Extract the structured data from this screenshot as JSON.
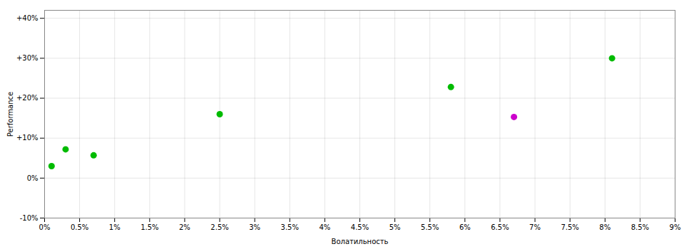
{
  "chart_data": {
    "type": "scatter",
    "x_label": "Волатильность",
    "y_label": "Performance",
    "x": [
      0.001,
      0.003,
      0.007,
      0.025,
      0.058,
      0.067,
      0.081
    ],
    "values": [
      0.03,
      0.072,
      0.057,
      0.16,
      0.228,
      0.153,
      0.3
    ],
    "colors": [
      "#00bb00",
      "#00bb00",
      "#00bb00",
      "#00bb00",
      "#00bb00",
      "#cc00cc",
      "#00bb00"
    ],
    "xlim": [
      0.0,
      0.09
    ],
    "ylim": [
      -0.1,
      0.42
    ],
    "xticks": [
      {
        "value": 0.0,
        "label": "0%"
      },
      {
        "value": 0.005,
        "label": "0.5%"
      },
      {
        "value": 0.01,
        "label": "1%"
      },
      {
        "value": 0.015,
        "label": "1.5%"
      },
      {
        "value": 0.02,
        "label": "2%"
      },
      {
        "value": 0.025,
        "label": "2.5%"
      },
      {
        "value": 0.03,
        "label": "3%"
      },
      {
        "value": 0.035,
        "label": "3.5%"
      },
      {
        "value": 0.04,
        "label": "4%"
      },
      {
        "value": 0.045,
        "label": "4.5%"
      },
      {
        "value": 0.05,
        "label": "5%"
      },
      {
        "value": 0.055,
        "label": "5.5%"
      },
      {
        "value": 0.06,
        "label": "6%"
      },
      {
        "value": 0.065,
        "label": "6.5%"
      },
      {
        "value": 0.07,
        "label": "7%"
      },
      {
        "value": 0.075,
        "label": "7.5%"
      },
      {
        "value": 0.08,
        "label": "8%"
      },
      {
        "value": 0.085,
        "label": "8.5%"
      },
      {
        "value": 0.09,
        "label": "9%"
      }
    ],
    "yticks": [
      {
        "value": -0.1,
        "label": "-10%"
      },
      {
        "value": 0.0,
        "label": "0%"
      },
      {
        "value": 0.1,
        "label": "+10%"
      },
      {
        "value": 0.2,
        "label": "+20%"
      },
      {
        "value": 0.3,
        "label": "+30%"
      },
      {
        "value": 0.4,
        "label": "+40%"
      }
    ],
    "grid": true
  }
}
